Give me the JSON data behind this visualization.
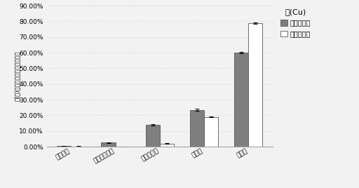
{
  "categories": [
    "可交换态",
    "碳酸盐结合态",
    "铁锄氧化态",
    "有机态",
    "残渣态"
  ],
  "before": [
    0.5,
    2.5,
    14.0,
    23.5,
    60.0
  ],
  "after": [
    0.2,
    0.0,
    2.0,
    19.0,
    79.0
  ],
  "before_err": [
    0.1,
    0.15,
    0.4,
    0.5,
    0.6
  ],
  "after_err": [
    0.05,
    0.05,
    0.2,
    0.3,
    0.4
  ],
  "legend_title": "锂(Cu)",
  "legend_before": "样地蚰之前",
  "legend_after": "样地蚰之后",
  "ylabel": "每(克)土壤含量占总量的百分比",
  "ymax": 90,
  "yticks": [
    0,
    10,
    20,
    30,
    40,
    50,
    60,
    70,
    80,
    90
  ],
  "bar_color_before": "#7f7f7f",
  "bar_color_after": "#ffffff",
  "bar_edgecolor": "#555555",
  "background": "#f2f2f2",
  "grid_color": "#c8c8c8",
  "bar_width": 0.32
}
